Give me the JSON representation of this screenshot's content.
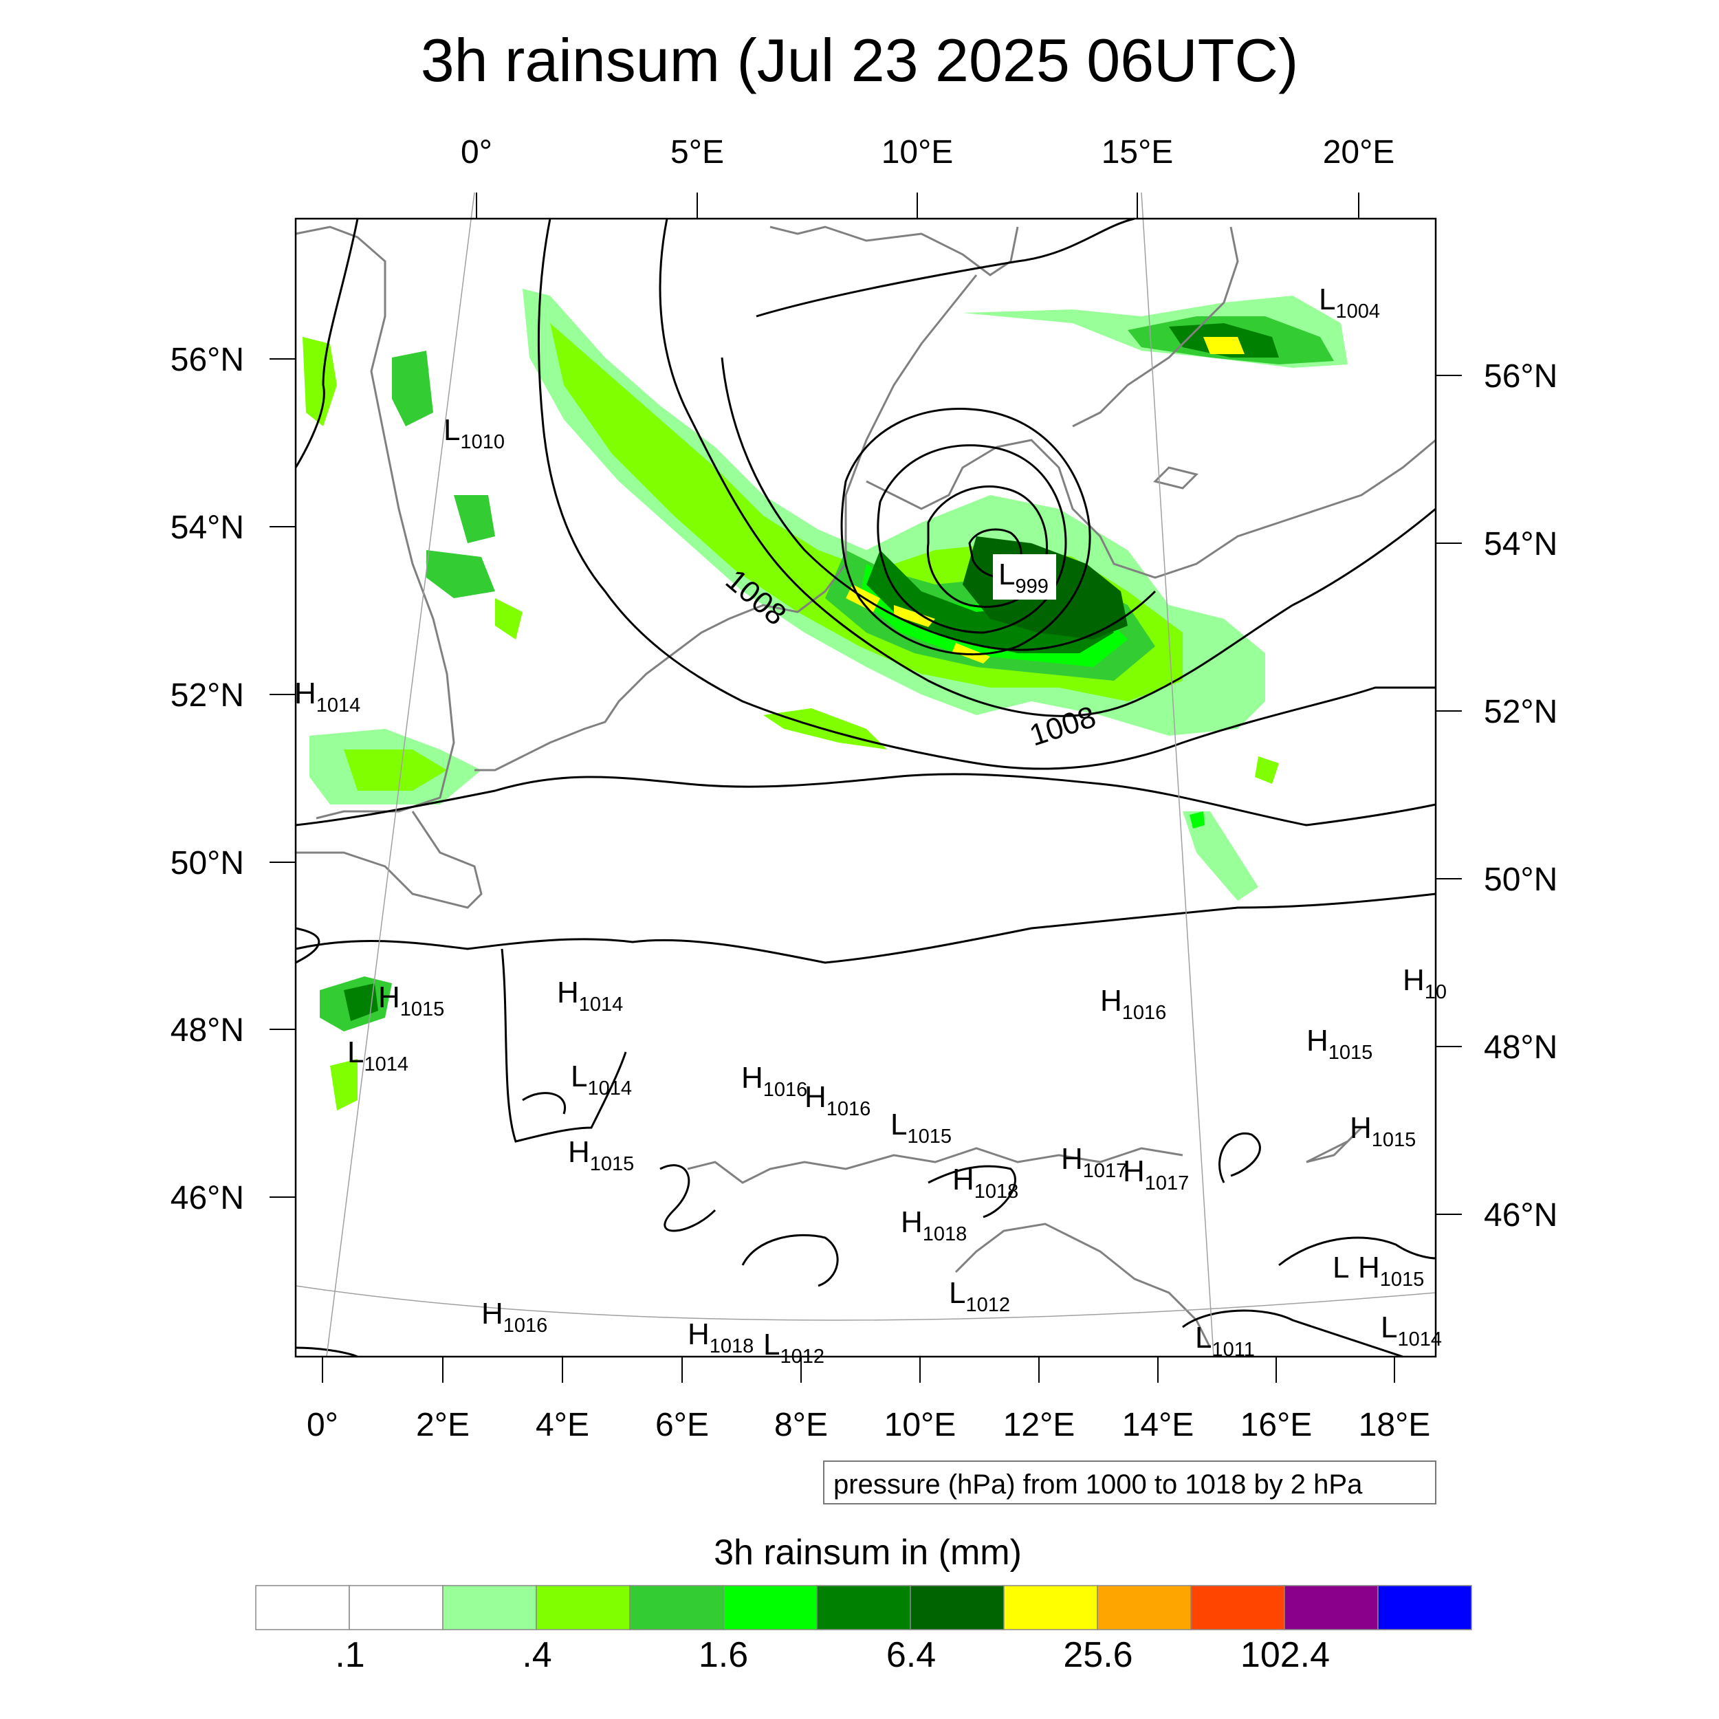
{
  "title": "3h rainsum (Jul 23 2025 06UTC)",
  "top_lon_ticks": [
    "0°",
    "5°E",
    "10°E",
    "15°E",
    "20°E"
  ],
  "bottom_lon_ticks": [
    "0°",
    "2°E",
    "4°E",
    "6°E",
    "8°E",
    "10°E",
    "12°E",
    "14°E",
    "16°E",
    "18°E"
  ],
  "left_lat_ticks": [
    "56°N",
    "54°N",
    "52°N",
    "50°N",
    "48°N",
    "46°N"
  ],
  "right_lat_ticks": [
    "56°N",
    "54°N",
    "52°N",
    "50°N",
    "48°N",
    "46°N"
  ],
  "contour_info": "pressure (hPa) from 1000 to 1018 by 2 hPa",
  "contour_labels": [
    "1008",
    "1008"
  ],
  "pressure_centers": [
    {
      "t": "L",
      "v": "1004"
    },
    {
      "t": "L",
      "v": "1010"
    },
    {
      "t": "L",
      "v": "999"
    },
    {
      "t": "H",
      "v": "1014"
    },
    {
      "t": "H",
      "v": "1015"
    },
    {
      "t": "L",
      "v": "1014"
    },
    {
      "t": "H",
      "v": "1014"
    },
    {
      "t": "L",
      "v": "1014"
    },
    {
      "t": "H",
      "v": "1015"
    },
    {
      "t": "H",
      "v": "1016"
    },
    {
      "t": "H",
      "v": "1016"
    },
    {
      "t": "L",
      "v": "1015"
    },
    {
      "t": "H",
      "v": "1018"
    },
    {
      "t": "H",
      "v": "1017"
    },
    {
      "t": "H",
      "v": "1017"
    },
    {
      "t": "H",
      "v": "1018"
    },
    {
      "t": "L",
      "v": "1012"
    },
    {
      "t": "H",
      "v": "1016"
    },
    {
      "t": "H",
      "v": "1018"
    },
    {
      "t": "L",
      "v": "1012"
    },
    {
      "t": "L",
      "v": "1011"
    },
    {
      "t": "H",
      "v": "1016"
    },
    {
      "t": "H",
      "v": "1015"
    },
    {
      "t": "H",
      "v": "1015"
    },
    {
      "t": "H",
      "v": "1015"
    },
    {
      "t": "L",
      "v": ""
    },
    {
      "t": "L",
      "v": "1014"
    },
    {
      "t": "H",
      "v": "10"
    }
  ],
  "colorbar": {
    "title": "3h rainsum in (mm)",
    "colors": [
      "#ffffff",
      "#ffffff",
      "#99ff99",
      "#80ff00",
      "#33cc33",
      "#00ff00",
      "#008000",
      "#006400",
      "#ffff00",
      "#ffa500",
      "#ff4500",
      "#8b008b",
      "#0000ff"
    ],
    "tick_labels": [
      ".1",
      ".4",
      "1.6",
      "6.4",
      "25.6",
      "102.4"
    ]
  }
}
